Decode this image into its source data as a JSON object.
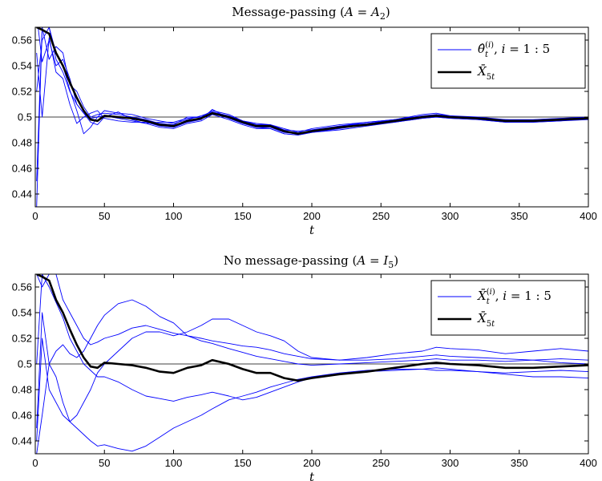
{
  "chart_data": [
    {
      "type": "line",
      "title": "Message-passing (A = A₂)",
      "xlabel": "t",
      "ylabel": "",
      "xlim": [
        0,
        400
      ],
      "ylim": [
        0.43,
        0.57
      ],
      "xticks": [
        "0",
        "50",
        "100",
        "150",
        "200",
        "250",
        "300",
        "350",
        "400"
      ],
      "yticks": [
        "0.44",
        "0.46",
        "0.48",
        "0.5",
        "0.52",
        "0.54",
        "0.56"
      ],
      "reference_line": 0.5,
      "legend": {
        "placement": "top-right",
        "entries": [
          {
            "label": "θ̂ₜ⁽ⁱ⁾, i = 1 : 5",
            "color": "#0000ff",
            "style": "thin"
          },
          {
            "label": "X̄₅ₜ",
            "color": "#000000",
            "style": "thick"
          }
        ]
      },
      "x": [
        1,
        5,
        10,
        15,
        20,
        25,
        30,
        35,
        40,
        45,
        50,
        60,
        70,
        80,
        90,
        100,
        110,
        120,
        128,
        140,
        150,
        160,
        170,
        180,
        190,
        200,
        220,
        240,
        260,
        280,
        290,
        300,
        320,
        340,
        360,
        380,
        400
      ],
      "series": [
        {
          "color": "#000000",
          "width": 2.6,
          "values": [
            0.57,
            0.568,
            0.565,
            0.55,
            0.54,
            0.527,
            0.515,
            0.505,
            0.498,
            0.497,
            0.501,
            0.5,
            0.499,
            0.497,
            0.494,
            0.493,
            0.497,
            0.499,
            0.503,
            0.5,
            0.496,
            0.493,
            0.493,
            0.489,
            0.487,
            0.489,
            0.492,
            0.494,
            0.497,
            0.5,
            0.501,
            0.5,
            0.499,
            0.497,
            0.497,
            0.498,
            0.499
          ]
        },
        {
          "color": "#0000ff",
          "width": 0.9,
          "values": [
            0.58,
            0.543,
            0.56,
            0.54,
            0.545,
            0.53,
            0.51,
            0.503,
            0.496,
            0.494,
            0.5,
            0.504,
            0.498,
            0.495,
            0.496,
            0.496,
            0.499,
            0.5,
            0.503,
            0.499,
            0.495,
            0.492,
            0.492,
            0.488,
            0.487,
            0.489,
            0.493,
            0.495,
            0.498,
            0.501,
            0.502,
            0.501,
            0.499,
            0.497,
            0.497,
            0.498,
            0.499
          ]
        },
        {
          "color": "#0000ff",
          "width": 0.9,
          "values": [
            0.45,
            0.57,
            0.57,
            0.55,
            0.54,
            0.521,
            0.505,
            0.487,
            0.492,
            0.5,
            0.505,
            0.503,
            0.502,
            0.499,
            0.497,
            0.495,
            0.498,
            0.501,
            0.504,
            0.501,
            0.497,
            0.494,
            0.494,
            0.49,
            0.489,
            0.49,
            0.493,
            0.496,
            0.498,
            0.5,
            0.502,
            0.5,
            0.499,
            0.498,
            0.497,
            0.498,
            0.5
          ]
        },
        {
          "color": "#0000ff",
          "width": 0.9,
          "values": [
            0.55,
            0.5,
            0.562,
            0.535,
            0.53,
            0.51,
            0.495,
            0.5,
            0.503,
            0.505,
            0.499,
            0.497,
            0.496,
            0.496,
            0.493,
            0.492,
            0.496,
            0.498,
            0.506,
            0.499,
            0.495,
            0.492,
            0.491,
            0.487,
            0.486,
            0.488,
            0.491,
            0.494,
            0.496,
            0.499,
            0.5,
            0.499,
            0.498,
            0.496,
            0.496,
            0.497,
            0.499
          ]
        },
        {
          "color": "#0000ff",
          "width": 0.9,
          "values": [
            0.43,
            0.57,
            0.545,
            0.555,
            0.55,
            0.525,
            0.52,
            0.508,
            0.5,
            0.502,
            0.503,
            0.502,
            0.5,
            0.498,
            0.495,
            0.494,
            0.5,
            0.5,
            0.505,
            0.502,
            0.497,
            0.495,
            0.494,
            0.491,
            0.488,
            0.491,
            0.494,
            0.496,
            0.498,
            0.502,
            0.503,
            0.501,
            0.5,
            0.498,
            0.498,
            0.499,
            0.5
          ]
        },
        {
          "color": "#0000ff",
          "width": 0.9,
          "values": [
            0.52,
            0.56,
            0.57,
            0.545,
            0.535,
            0.52,
            0.51,
            0.503,
            0.499,
            0.5,
            0.501,
            0.499,
            0.497,
            0.495,
            0.492,
            0.491,
            0.495,
            0.497,
            0.502,
            0.498,
            0.494,
            0.491,
            0.491,
            0.487,
            0.486,
            0.488,
            0.49,
            0.493,
            0.496,
            0.499,
            0.5,
            0.499,
            0.498,
            0.496,
            0.496,
            0.497,
            0.498
          ]
        }
      ]
    },
    {
      "type": "line",
      "title": "No message-passing (A = I₅)",
      "xlabel": "t",
      "ylabel": "",
      "xlim": [
        0,
        400
      ],
      "ylim": [
        0.43,
        0.57
      ],
      "xticks": [
        "0",
        "50",
        "100",
        "150",
        "200",
        "250",
        "300",
        "350",
        "400"
      ],
      "yticks": [
        "0.44",
        "0.46",
        "0.48",
        "0.5",
        "0.52",
        "0.54",
        "0.56"
      ],
      "reference_line": 0.5,
      "legend": {
        "placement": "top-right",
        "entries": [
          {
            "label": "X̄ₜ⁽ⁱ⁾, i = 1 : 5",
            "color": "#0000ff",
            "style": "thin"
          },
          {
            "label": "X̄₅ₜ",
            "color": "#000000",
            "style": "thick"
          }
        ]
      },
      "x": [
        1,
        5,
        10,
        15,
        20,
        25,
        30,
        35,
        40,
        45,
        50,
        60,
        70,
        80,
        90,
        100,
        110,
        120,
        128,
        140,
        150,
        160,
        170,
        180,
        190,
        200,
        220,
        240,
        260,
        280,
        290,
        300,
        320,
        340,
        360,
        380,
        400
      ],
      "series": [
        {
          "color": "#000000",
          "width": 2.6,
          "values": [
            0.57,
            0.568,
            0.565,
            0.55,
            0.54,
            0.527,
            0.515,
            0.505,
            0.498,
            0.497,
            0.501,
            0.5,
            0.499,
            0.497,
            0.494,
            0.493,
            0.497,
            0.499,
            0.503,
            0.5,
            0.496,
            0.493,
            0.493,
            0.489,
            0.487,
            0.489,
            0.492,
            0.494,
            0.497,
            0.5,
            0.501,
            0.5,
            0.499,
            0.497,
            0.497,
            0.498,
            0.499
          ]
        },
        {
          "color": "#0000ff",
          "width": 0.9,
          "values": [
            0.57,
            0.56,
            0.57,
            0.57,
            0.55,
            0.54,
            0.53,
            0.52,
            0.515,
            0.517,
            0.52,
            0.523,
            0.528,
            0.53,
            0.527,
            0.524,
            0.522,
            0.52,
            0.518,
            0.516,
            0.514,
            0.513,
            0.511,
            0.508,
            0.506,
            0.504,
            0.503,
            0.503,
            0.504,
            0.506,
            0.507,
            0.506,
            0.505,
            0.504,
            0.503,
            0.501,
            0.5
          ]
        },
        {
          "color": "#0000ff",
          "width": 0.9,
          "values": [
            0.44,
            0.52,
            0.48,
            0.47,
            0.46,
            0.455,
            0.46,
            0.47,
            0.48,
            0.493,
            0.5,
            0.51,
            0.52,
            0.525,
            0.525,
            0.522,
            0.525,
            0.53,
            0.535,
            0.535,
            0.53,
            0.525,
            0.522,
            0.518,
            0.51,
            0.505,
            0.503,
            0.505,
            0.508,
            0.51,
            0.513,
            0.512,
            0.511,
            0.508,
            0.51,
            0.512,
            0.51
          ]
        },
        {
          "color": "#0000ff",
          "width": 0.9,
          "values": [
            0.45,
            0.54,
            0.5,
            0.49,
            0.47,
            0.455,
            0.45,
            0.445,
            0.44,
            0.436,
            0.437,
            0.434,
            0.432,
            0.436,
            0.443,
            0.45,
            0.455,
            0.46,
            0.465,
            0.472,
            0.475,
            0.478,
            0.482,
            0.485,
            0.488,
            0.49,
            0.493,
            0.495,
            0.496,
            0.496,
            0.497,
            0.496,
            0.494,
            0.492,
            0.49,
            0.49,
            0.489
          ]
        },
        {
          "color": "#0000ff",
          "width": 0.9,
          "values": [
            0.5,
            0.57,
            0.56,
            0.548,
            0.536,
            0.52,
            0.51,
            0.5,
            0.495,
            0.49,
            0.49,
            0.486,
            0.48,
            0.475,
            0.473,
            0.471,
            0.474,
            0.476,
            0.478,
            0.475,
            0.472,
            0.474,
            0.478,
            0.482,
            0.486,
            0.489,
            0.492,
            0.494,
            0.495,
            0.496,
            0.495,
            0.495,
            0.494,
            0.493,
            0.494,
            0.495,
            0.494
          ]
        },
        {
          "color": "#0000ff",
          "width": 0.9,
          "values": [
            0.43,
            0.46,
            0.5,
            0.51,
            0.515,
            0.508,
            0.505,
            0.51,
            0.52,
            0.53,
            0.538,
            0.547,
            0.55,
            0.545,
            0.537,
            0.532,
            0.522,
            0.518,
            0.516,
            0.512,
            0.509,
            0.506,
            0.504,
            0.502,
            0.5,
            0.499,
            0.5,
            0.501,
            0.502,
            0.503,
            0.504,
            0.503,
            0.503,
            0.502,
            0.503,
            0.504,
            0.503
          ]
        }
      ]
    }
  ]
}
